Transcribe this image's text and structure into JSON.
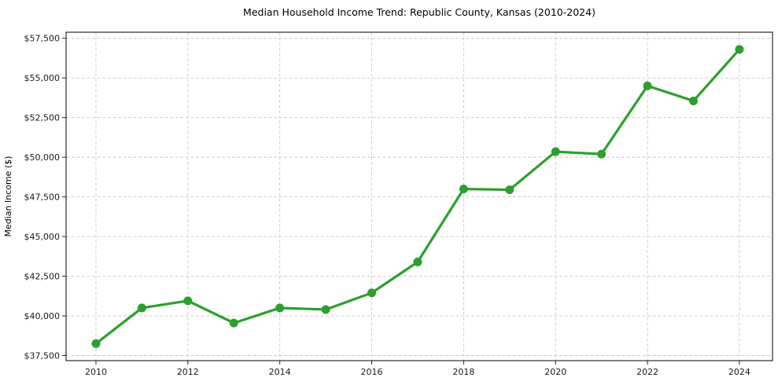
{
  "figure": {
    "title": "Median Household Income Trend: Republic County, Kansas (2010-2024)",
    "ylabel": "Median Income ($)"
  },
  "chart_data": {
    "type": "line",
    "title": "Median Household Income Trend: Republic County, Kansas (2010-2024)",
    "xlabel": "",
    "ylabel": "Median Income ($)",
    "series": [
      {
        "name": "Median household income",
        "x": [
          2010,
          2011,
          2012,
          2013,
          2014,
          2015,
          2016,
          2017,
          2018,
          2019,
          2020,
          2021,
          2022,
          2023,
          2024
        ],
        "values": [
          38250,
          40500,
          40950,
          39550,
          40500,
          40400,
          41450,
          43400,
          48000,
          47950,
          50350,
          50200,
          54500,
          53550,
          56800
        ],
        "color": "#2ca02c",
        "marker": "circle"
      }
    ],
    "x_ticks": [
      2010,
      2012,
      2014,
      2016,
      2018,
      2020,
      2022,
      2024
    ],
    "x_tick_labels": [
      "2010",
      "2012",
      "2014",
      "2016",
      "2018",
      "2020",
      "2022",
      "2024"
    ],
    "y_ticks": [
      37500,
      40000,
      42500,
      45000,
      47500,
      50000,
      52500,
      55000,
      57500
    ],
    "y_tick_labels": [
      "$37,500",
      "$40,000",
      "$42,500",
      "$45,000",
      "$47,500",
      "$50,000",
      "$52,500",
      "$55,000",
      "$57,500"
    ],
    "xlim": [
      2009.35,
      2024.72
    ],
    "ylim": [
      37178,
      57881
    ],
    "grid": true,
    "grid_style": "dashed",
    "legend": "none",
    "colors": {
      "line": "#2ca02c",
      "grid": "#c9c9c9",
      "spine": "#000000",
      "text": "#000000",
      "background": "#ffffff"
    }
  }
}
